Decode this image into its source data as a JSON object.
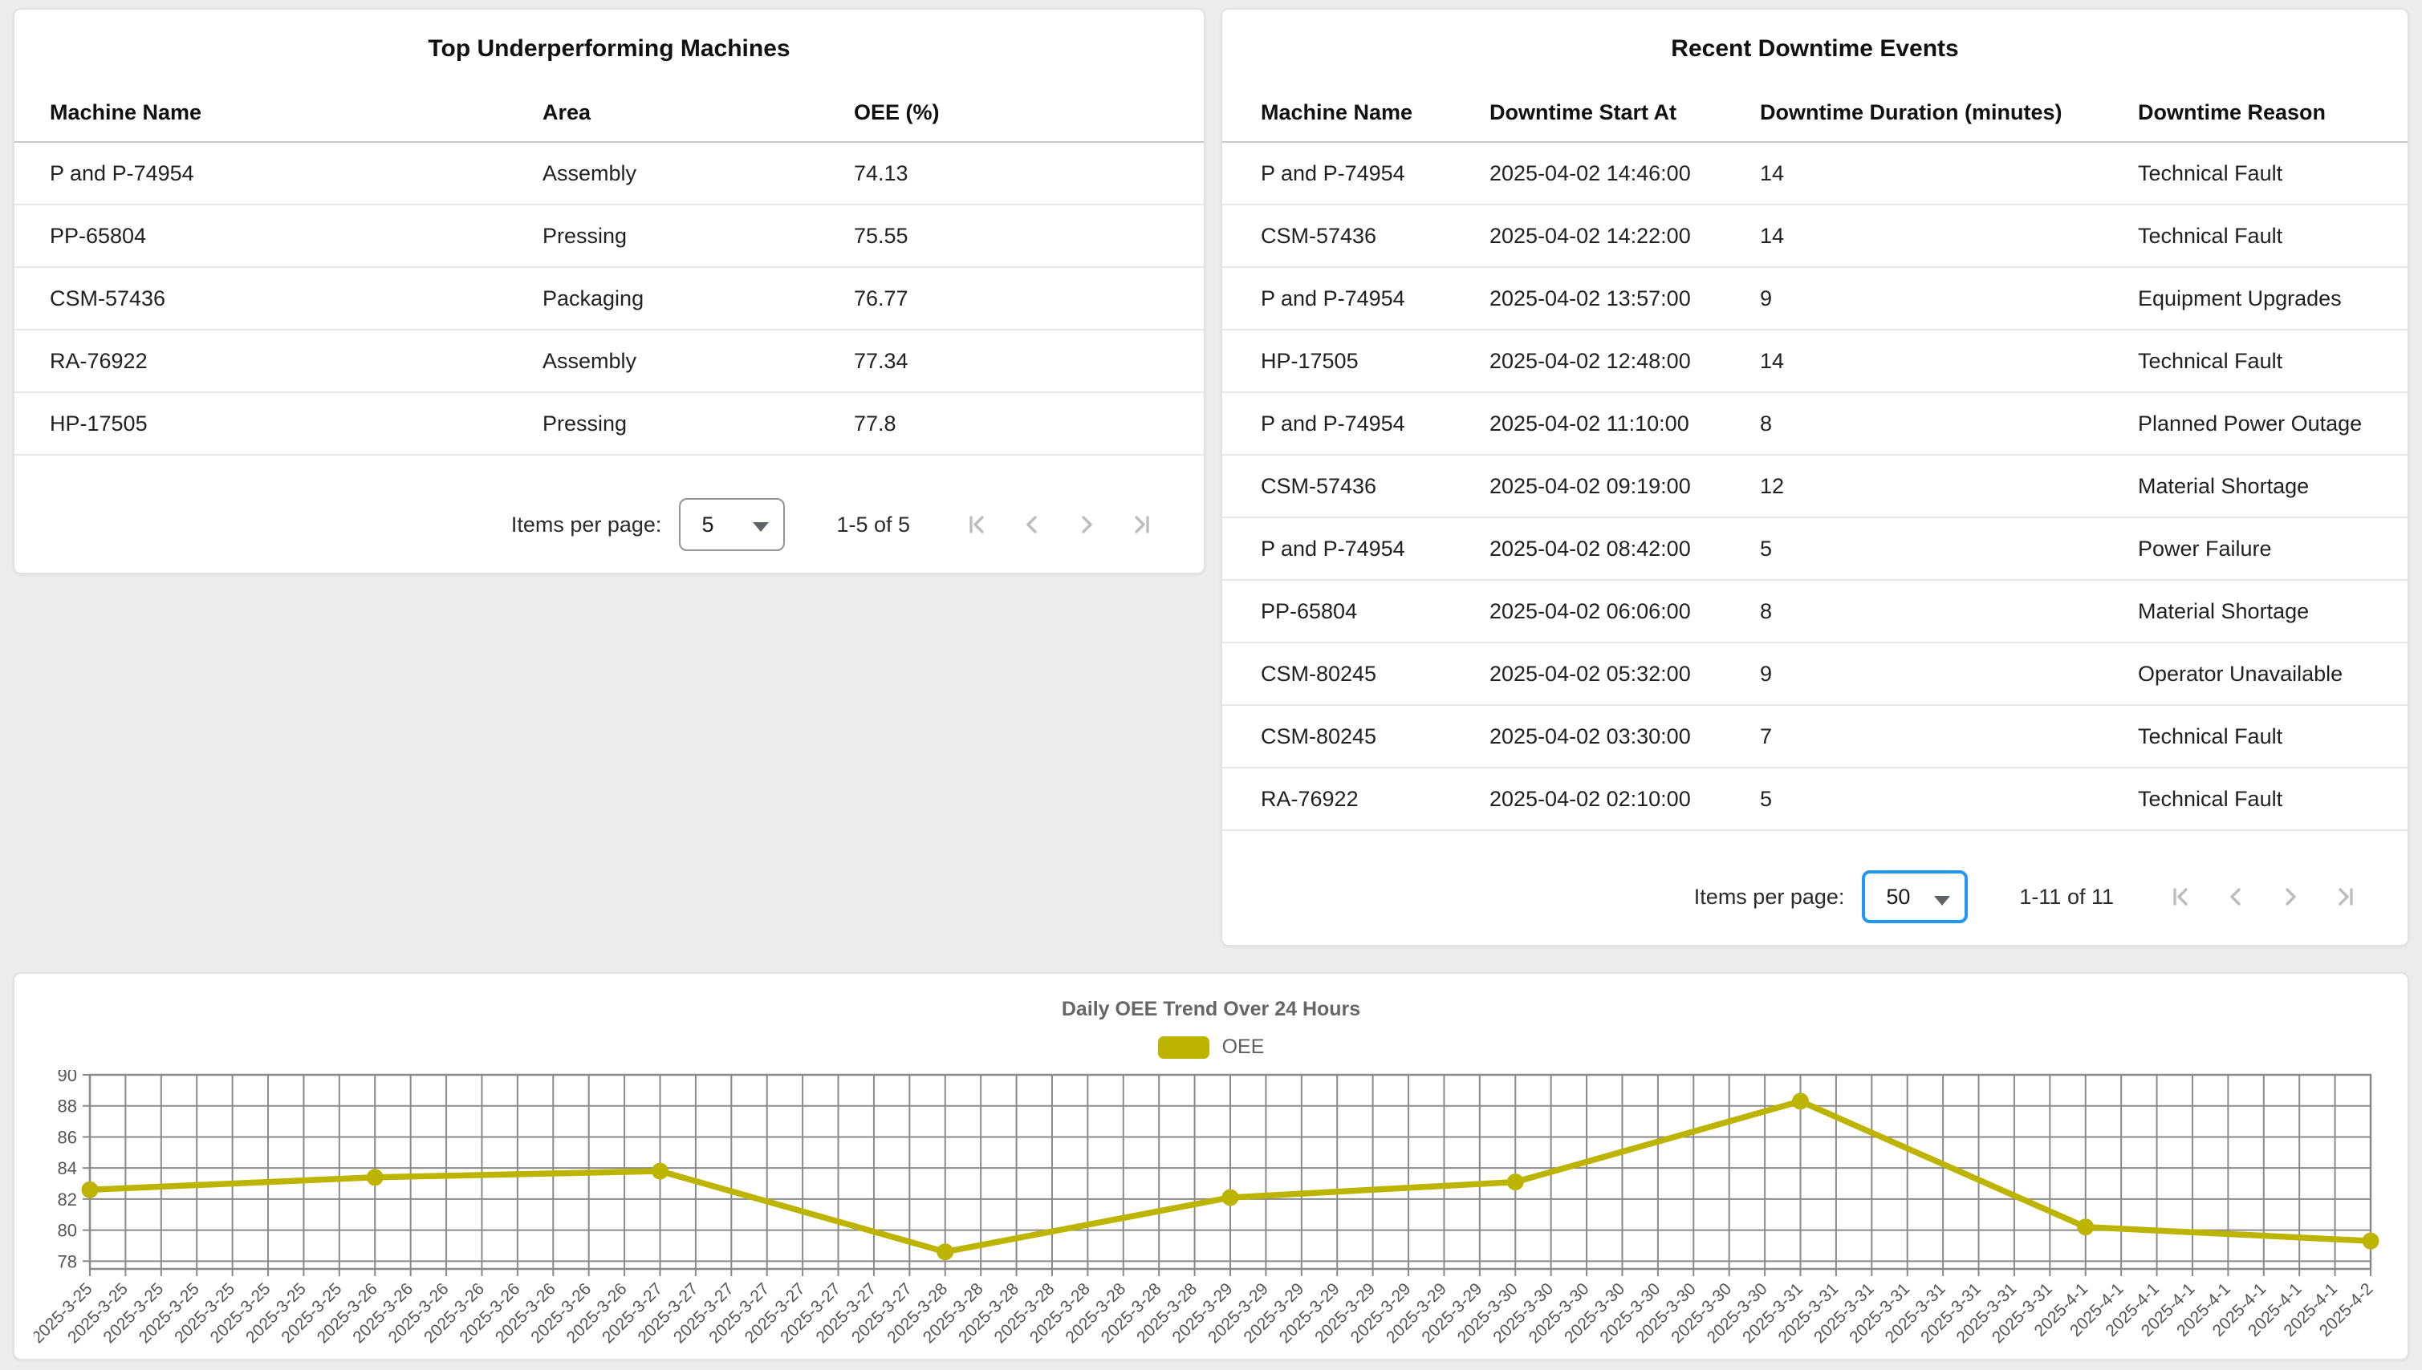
{
  "underperforming": {
    "title": "Top Underperforming Machines",
    "columns": [
      "Machine Name",
      "Area",
      "OEE (%)"
    ],
    "rows": [
      [
        "P and P-74954",
        "Assembly",
        "74.13"
      ],
      [
        "PP-65804",
        "Pressing",
        "75.55"
      ],
      [
        "CSM-57436",
        "Packaging",
        "76.77"
      ],
      [
        "RA-76922",
        "Assembly",
        "77.34"
      ],
      [
        "HP-17505",
        "Pressing",
        "77.8"
      ]
    ],
    "paginator": {
      "items_per_page_label": "Items per page:",
      "page_size": "5",
      "range_label": "1-5 of 5"
    }
  },
  "downtime": {
    "title": "Recent Downtime Events",
    "columns": [
      "Machine Name",
      "Downtime Start At",
      "Downtime Duration (minutes)",
      "Downtime Reason"
    ],
    "rows": [
      [
        "P and P-74954",
        "2025-04-02 14:46:00",
        "14",
        "Technical Fault"
      ],
      [
        "CSM-57436",
        "2025-04-02 14:22:00",
        "14",
        "Technical Fault"
      ],
      [
        "P and P-74954",
        "2025-04-02 13:57:00",
        "9",
        "Equipment Upgrades"
      ],
      [
        "HP-17505",
        "2025-04-02 12:48:00",
        "14",
        "Technical Fault"
      ],
      [
        "P and P-74954",
        "2025-04-02 11:10:00",
        "8",
        "Planned Power Outage"
      ],
      [
        "CSM-57436",
        "2025-04-02 09:19:00",
        "12",
        "Material Shortage"
      ],
      [
        "P and P-74954",
        "2025-04-02 08:42:00",
        "5",
        "Power Failure"
      ],
      [
        "PP-65804",
        "2025-04-02 06:06:00",
        "8",
        "Material Shortage"
      ],
      [
        "CSM-80245",
        "2025-04-02 05:32:00",
        "9",
        "Operator Unavailable"
      ],
      [
        "CSM-80245",
        "2025-04-02 03:30:00",
        "7",
        "Technical Fault"
      ],
      [
        "RA-76922",
        "2025-04-02 02:10:00",
        "5",
        "Technical Fault"
      ]
    ],
    "paginator": {
      "items_per_page_label": "Items per page:",
      "page_size": "50",
      "range_label": "1-11 of 11"
    }
  },
  "chart_data": {
    "type": "line",
    "title": "Daily OEE Trend Over 24 Hours",
    "legend": [
      {
        "label": "OEE",
        "color": "#bdb400"
      }
    ],
    "x": [
      "2025-3-25",
      "2025-3-26",
      "2025-3-27",
      "2025-3-28",
      "2025-3-29",
      "2025-3-30",
      "2025-3-31",
      "2025-4-1",
      "2025-4-2"
    ],
    "values": [
      82.6,
      83.4,
      83.8,
      78.6,
      82.1,
      83.1,
      88.3,
      80.2,
      79.3
    ],
    "ticks_per_day": 8,
    "ylim": [
      77.5,
      90
    ],
    "yticks": [
      78,
      80,
      82,
      84,
      86,
      88,
      90
    ],
    "grid": true,
    "legend_position": "top",
    "line_color": "#bdb400",
    "grid_color": "#8a8a8a",
    "tick_label_color": "#555555"
  }
}
